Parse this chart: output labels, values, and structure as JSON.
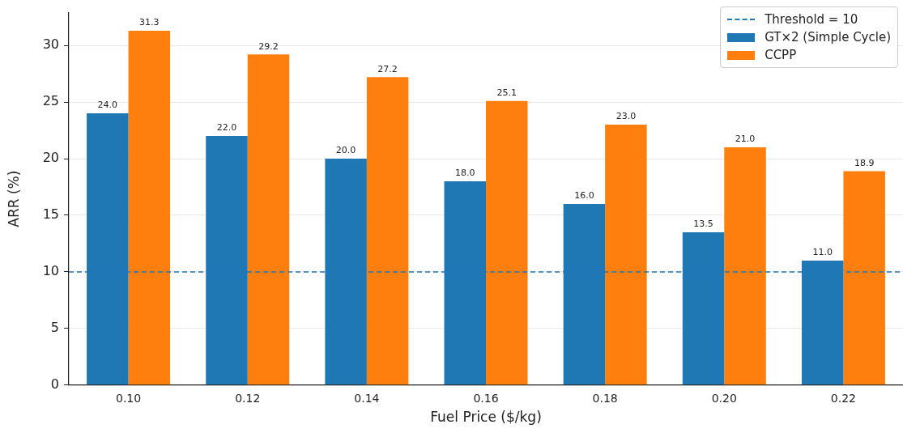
{
  "chart_data": {
    "type": "bar",
    "categories": [
      "0.10",
      "0.12",
      "0.14",
      "0.16",
      "0.18",
      "0.20",
      "0.22"
    ],
    "series": [
      {
        "name": "GT×2 (Simple Cycle)",
        "color": "#1f77b4",
        "values": [
          24.0,
          22.0,
          20.0,
          18.0,
          16.0,
          13.5,
          11.0
        ],
        "value_labels": [
          "24.0",
          "22.0",
          "20.0",
          "18.0",
          "16.0",
          "13.5",
          "11.0"
        ]
      },
      {
        "name": "CCPP",
        "color": "#ff7f0e",
        "values": [
          31.3,
          29.2,
          27.2,
          25.1,
          23.0,
          21.0,
          18.9
        ],
        "value_labels": [
          "31.3",
          "29.2",
          "27.2",
          "25.1",
          "23.0",
          "21.0",
          "18.9"
        ]
      }
    ],
    "xlabel": "Fuel Price ($/kg)",
    "ylabel": "ARR (%)",
    "ylim": [
      0,
      32.9
    ],
    "yticks": [
      0,
      5,
      10,
      15,
      20,
      25,
      30
    ],
    "ref_lines": [
      {
        "axis": "y",
        "value": 10,
        "label": "Threshold = 10",
        "color": "#1f77b4",
        "line_style": "dashed"
      }
    ],
    "grid": "y",
    "legend": "top right"
  }
}
